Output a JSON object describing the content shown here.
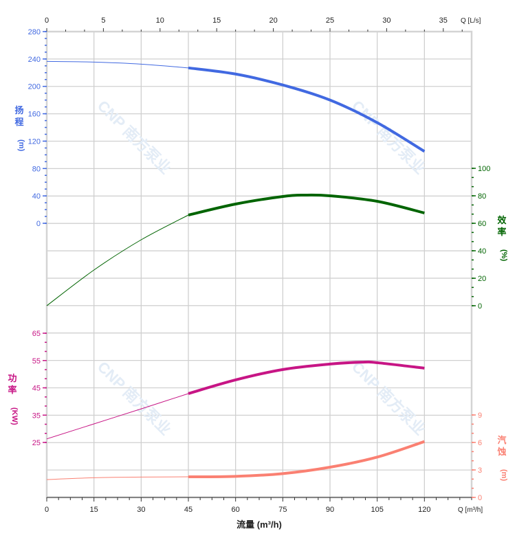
{
  "chart_data": {
    "type": "line",
    "title": "",
    "xlabel": "流量 (m³/h)",
    "x_axis_bottom": {
      "unit_label": "Q [m³/h]",
      "range": [
        0,
        135
      ],
      "ticks": [
        0,
        15,
        30,
        45,
        60,
        75,
        90,
        105,
        120
      ]
    },
    "x_axis_top": {
      "unit_label": "Q [L/s]",
      "range": [
        0,
        37.5
      ],
      "ticks": [
        0,
        5,
        10,
        15,
        20,
        25,
        30,
        35
      ]
    },
    "grid": true,
    "watermark": "CNP 南方泵业",
    "operating_range": [
      45,
      120
    ],
    "series": [
      {
        "name": "扬程 (m)",
        "axis": "left-top",
        "color": "#4169e1",
        "range": [
          0,
          280
        ],
        "ticks": [
          0,
          40,
          80,
          120,
          160,
          200,
          240,
          280
        ],
        "x": [
          0,
          15,
          30,
          45,
          60,
          75,
          90,
          105,
          120
        ],
        "y": [
          236.5,
          235.5,
          232.5,
          227,
          218,
          202,
          180,
          147,
          105
        ]
      },
      {
        "name": "效率 (%)",
        "axis": "right-upper",
        "color": "#006400",
        "range": [
          0,
          100
        ],
        "ticks": [
          0,
          20,
          40,
          60,
          80,
          100
        ],
        "x": [
          0,
          15,
          30,
          45,
          60,
          75,
          82,
          90,
          105,
          120
        ],
        "y": [
          0,
          26,
          48,
          66,
          74,
          79.5,
          80.5,
          80,
          76,
          67.5
        ]
      },
      {
        "name": "功率 (KW)",
        "axis": "left-bottom",
        "color": "#c71585",
        "range": [
          15,
          65
        ],
        "ticks": [
          25,
          35,
          45,
          55,
          65
        ],
        "x": [
          0,
          15,
          30,
          45,
          60,
          75,
          90,
          100,
          105,
          120
        ],
        "y": [
          26.3,
          31.8,
          37.3,
          42.9,
          47.9,
          51.7,
          53.7,
          54.4,
          54.2,
          52.2
        ]
      },
      {
        "name": "汽蚀 (m)",
        "axis": "right-lower",
        "color": "#fa8072",
        "range": [
          0,
          12
        ],
        "ticks": [
          0,
          3,
          6,
          9
        ],
        "x": [
          0,
          15,
          30,
          45,
          60,
          75,
          90,
          105,
          120
        ],
        "y": [
          1.95,
          2.15,
          2.22,
          2.25,
          2.3,
          2.6,
          3.3,
          4.4,
          6.1
        ]
      }
    ]
  }
}
